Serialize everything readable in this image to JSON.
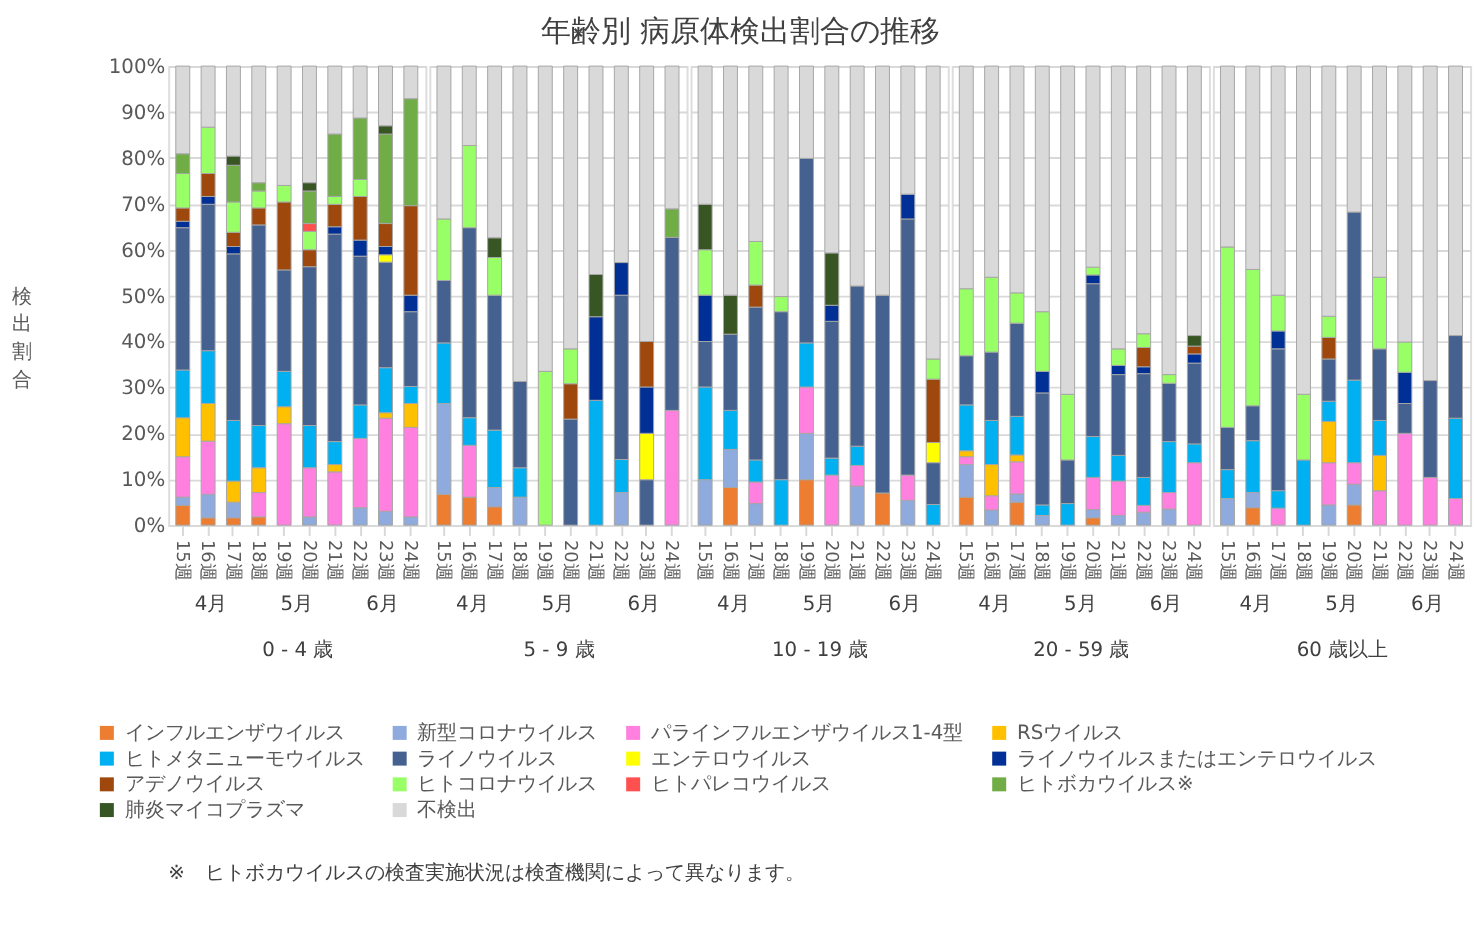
{
  "chart_data": [
    {
      "type": "bar",
      "stacked": true,
      "ylabel": "検出割合",
      "xlabel": "0 - 4 歳",
      "legend": "bottom",
      "grid": "y",
      "categories": [
        "15週",
        "16週",
        "17週",
        "18週",
        "19週",
        "20週",
        "21週",
        "22週",
        "23週",
        "24週"
      ],
      "ylim": [
        0,
        100
      ],
      "yticks": [
        {
          "value": 0,
          "label": "0%"
        },
        {
          "value": 10,
          "label": "10%"
        },
        {
          "value": 20,
          "label": "20%"
        },
        {
          "value": 30,
          "label": "30%"
        },
        {
          "value": 40,
          "label": "40%"
        },
        {
          "value": 50,
          "label": "50%"
        },
        {
          "value": 60,
          "label": "60%"
        },
        {
          "value": 70,
          "label": "70%"
        },
        {
          "value": 80,
          "label": "80%"
        },
        {
          "value": 90,
          "label": "90%"
        },
        {
          "value": 100,
          "label": "100%"
        }
      ],
      "annotations": [
        "4月",
        "5月",
        "6月",
        "※　ヒトボカウイルスの検査実施状況は検査機関によって異なります。"
      ],
      "series": [
        {
          "name": "インフルエンザウイルス",
          "color": "#ed7d31",
          "values": [
            4.3,
            1.6,
            1.6,
            1.8,
            null,
            null,
            null,
            null,
            null,
            null
          ]
        },
        {
          "name": "新型コロナウイルス",
          "color": "#8faadc",
          "values": [
            1.8,
            5.1,
            3.4,
            null,
            null,
            1.8,
            null,
            3.8,
            3.0,
            1.8
          ]
        },
        {
          "name": "パラインフルエンザウイルス1-4型",
          "color": "#ff80df",
          "values": [
            8.8,
            11.6,
            null,
            5.3,
            22.1,
            10.7,
            11.6,
            15.1,
            20.3,
            19.5
          ]
        },
        {
          "name": "RSウイルス",
          "color": "#ffc000",
          "values": [
            8.5,
            8.2,
            4.6,
            5.4,
            3.7,
            null,
            1.6,
            null,
            1.2,
            5.2
          ]
        },
        {
          "name": "ヒトメタニューモウイルス",
          "color": "#00b0f0",
          "values": [
            10.4,
            11.5,
            13.2,
            9.2,
            7.7,
            9.2,
            5.0,
            7.3,
            9.8,
            3.7
          ]
        },
        {
          "name": "ライノウイルス",
          "color": "#44618f",
          "values": [
            31.0,
            31.9,
            36.3,
            43.7,
            22.1,
            34.6,
            45.2,
            32.4,
            23.0,
            16.3
          ]
        },
        {
          "name": "エンテロウイルス",
          "color": "#ffff00",
          "values": [
            null,
            null,
            null,
            null,
            null,
            null,
            null,
            null,
            1.6,
            null
          ]
        },
        {
          "name": "ライノウイルスまたはエンテロウイルス",
          "color": "#002f96",
          "values": [
            1.4,
            1.7,
            1.6,
            null,
            null,
            null,
            1.6,
            3.5,
            1.8,
            3.6
          ]
        },
        {
          "name": "アデノウイルス",
          "color": "#9e480e",
          "values": [
            2.9,
            5.0,
            3.1,
            3.7,
            14.8,
            3.7,
            4.9,
            9.5,
            5.0,
            19.5
          ]
        },
        {
          "name": "ヒトコロナウイルス",
          "color": "#99ff66",
          "values": [
            7.5,
            10.1,
            6.6,
            3.7,
            3.6,
            4.0,
            1.7,
            3.7,
            null,
            null
          ]
        },
        {
          "name": "ヒトパレコウイルス",
          "color": "#ff5050",
          "values": [
            null,
            null,
            null,
            null,
            null,
            1.7,
            null,
            null,
            null,
            null
          ]
        },
        {
          "name": "ヒトボカウイルス※",
          "color": "#70ad47",
          "values": [
            4.3,
            null,
            8.0,
            1.8,
            null,
            7.1,
            13.6,
            13.4,
            19.5,
            23.3
          ]
        },
        {
          "name": "肺炎マイコプラズマ",
          "color": "#375623",
          "values": [
            null,
            null,
            2.0,
            null,
            null,
            1.8,
            null,
            null,
            1.8,
            null
          ]
        },
        {
          "name": "不検出",
          "color": "#d9d9d9",
          "values": [
            19.1,
            13.3,
            19.6,
            25.4,
            26.0,
            25.4,
            14.8,
            11.3,
            13.0,
            7.1
          ]
        }
      ]
    },
    {
      "type": "bar",
      "stacked": true,
      "xlabel": "5 - 9 歳",
      "grid": "y",
      "tick_labels": "x",
      "categories": [
        "15週",
        "16週",
        "17週",
        "18週",
        "19週",
        "20週",
        "21週",
        "22週",
        "23週",
        "24週"
      ],
      "ylim": [
        0,
        100
      ],
      "yticks": [
        0,
        10,
        20,
        30,
        40,
        50,
        60,
        70,
        80,
        90,
        100
      ],
      "annotations": [
        "4月",
        "5月",
        "6月"
      ],
      "series": [
        {
          "name": "インフルエンザウイルス",
          "color": "#ed7d31",
          "values": [
            6.7,
            6.1,
            4.0,
            null,
            null,
            null,
            null,
            null,
            null,
            null
          ]
        },
        {
          "name": "新型コロナウイルス",
          "color": "#8faadc",
          "values": [
            19.8,
            null,
            4.2,
            6.1,
            null,
            null,
            null,
            7.1,
            null,
            null
          ]
        },
        {
          "name": "パラインフルエンザウイルス1-4型",
          "color": "#ff80df",
          "values": [
            null,
            11.3,
            null,
            null,
            null,
            null,
            null,
            null,
            null,
            25.0
          ]
        },
        {
          "name": "ヒトメタニューモウイルス",
          "color": "#00b0f0",
          "values": [
            13.2,
            6.0,
            12.5,
            6.4,
            null,
            null,
            27.2,
            7.2,
            null,
            null
          ]
        },
        {
          "name": "ライノウイルス",
          "color": "#44618f",
          "values": [
            13.6,
            41.4,
            29.4,
            18.8,
            null,
            23.1,
            null,
            35.8,
            9.9,
            37.7
          ]
        },
        {
          "name": "エンテロウイルス",
          "color": "#ffff00",
          "values": [
            null,
            null,
            null,
            null,
            null,
            null,
            null,
            null,
            10.1,
            null
          ]
        },
        {
          "name": "ライノウイルスまたはエンテロウイルス",
          "color": "#002f96",
          "values": [
            null,
            null,
            null,
            null,
            null,
            null,
            18.2,
            7.1,
            10.1,
            null
          ]
        },
        {
          "name": "アデノウイルス",
          "color": "#9e480e",
          "values": [
            null,
            null,
            null,
            null,
            null,
            7.7,
            null,
            null,
            9.9,
            null
          ]
        },
        {
          "name": "ヒトコロナウイルス",
          "color": "#99ff66",
          "values": [
            13.4,
            17.9,
            8.2,
            null,
            33.5,
            7.6,
            null,
            null,
            null,
            null
          ]
        },
        {
          "name": "ヒトボカウイルス※",
          "color": "#70ad47",
          "values": [
            null,
            null,
            null,
            null,
            null,
            null,
            null,
            null,
            null,
            6.2
          ]
        },
        {
          "name": "肺炎マイコプラズマ",
          "color": "#375623",
          "values": [
            null,
            null,
            4.3,
            null,
            null,
            null,
            9.2,
            null,
            null,
            null
          ]
        },
        {
          "name": "不検出",
          "color": "#d9d9d9",
          "values": [
            33.3,
            17.3,
            37.4,
            68.7,
            66.5,
            61.6,
            45.4,
            42.8,
            60.0,
            31.1
          ]
        }
      ]
    },
    {
      "type": "bar",
      "stacked": true,
      "title": "年齢別 病原体検出割合の推移",
      "xlabel": "10 - 19 歳",
      "grid": "y",
      "tick_labels": "x",
      "categories": [
        "15週",
        "16週",
        "17週",
        "18週",
        "19週",
        "20週",
        "21週",
        "22週",
        "23週",
        "24週"
      ],
      "ylim": [
        0,
        100
      ],
      "yticks": [
        0,
        10,
        20,
        30,
        40,
        50,
        60,
        70,
        80,
        90,
        100
      ],
      "annotations": [
        "4月",
        "5月",
        "6月"
      ],
      "series": [
        {
          "name": "インフルエンザウイルス",
          "color": "#ed7d31",
          "values": [
            null,
            8.2,
            null,
            null,
            9.9,
            null,
            null,
            7.0,
            null,
            null
          ]
        },
        {
          "name": "新型コロナウイルス",
          "color": "#8faadc",
          "values": [
            9.9,
            8.3,
            4.7,
            null,
            10.1,
            null,
            8.5,
            null,
            5.4,
            null
          ]
        },
        {
          "name": "パラインフルエンザウイルス1-4型",
          "color": "#ff80df",
          "values": [
            null,
            null,
            4.7,
            null,
            10.1,
            10.9,
            4.5,
            null,
            5.5,
            null
          ]
        },
        {
          "name": "ヒトメタニューモウイルス",
          "color": "#00b0f0",
          "values": [
            20.2,
            8.5,
            4.8,
            9.9,
            9.6,
            3.7,
            4.2,
            null,
            null,
            4.5
          ]
        },
        {
          "name": "ライノウイルス",
          "color": "#44618f",
          "values": [
            9.9,
            16.6,
            33.3,
            36.6,
            40.2,
            29.8,
            34.9,
            43.1,
            55.8,
            9.1
          ]
        },
        {
          "name": "エンテロウイルス",
          "color": "#ffff00",
          "values": [
            null,
            null,
            null,
            null,
            null,
            null,
            null,
            null,
            null,
            4.4
          ]
        },
        {
          "name": "ライノウイルスまたはエンテロウイルス",
          "color": "#002f96",
          "values": [
            10.1,
            null,
            null,
            null,
            null,
            3.5,
            null,
            null,
            5.4,
            null
          ]
        },
        {
          "name": "アデノウイルス",
          "color": "#9e480e",
          "values": [
            null,
            null,
            4.8,
            null,
            null,
            null,
            null,
            null,
            null,
            13.8
          ]
        },
        {
          "name": "ヒトコロナウイルス",
          "color": "#99ff66",
          "values": [
            9.9,
            null,
            9.5,
            3.3,
            null,
            null,
            null,
            null,
            null,
            4.4
          ]
        },
        {
          "name": "肺炎マイコプラズマ",
          "color": "#375623",
          "values": [
            9.9,
            8.5,
            null,
            null,
            null,
            11.4,
            null,
            null,
            null,
            null
          ]
        },
        {
          "name": "不検出",
          "color": "#d9d9d9",
          "values": [
            30.1,
            49.9,
            38.2,
            50.2,
            20.1,
            40.7,
            47.9,
            49.9,
            27.9,
            63.8
          ]
        }
      ]
    },
    {
      "type": "bar",
      "stacked": true,
      "xlabel": "20 - 59 歳",
      "grid": "y",
      "tick_labels": "x",
      "categories": [
        "15週",
        "16週",
        "17週",
        "18週",
        "19週",
        "20週",
        "21週",
        "22週",
        "23週",
        "24週"
      ],
      "ylim": [
        0,
        100
      ],
      "yticks": [
        0,
        10,
        20,
        30,
        40,
        50,
        60,
        70,
        80,
        90,
        100
      ],
      "annotations": [
        "4月",
        "5月",
        "6月"
      ],
      "series": [
        {
          "name": "インフルエンザウイルス",
          "color": "#ed7d31",
          "values": [
            6.1,
            null,
            5.0,
            null,
            null,
            1.6,
            null,
            null,
            null,
            null
          ]
        },
        {
          "name": "新型コロナウイルス",
          "color": "#8faadc",
          "values": [
            7.1,
            3.3,
            1.8,
            2.1,
            null,
            1.8,
            2.1,
            2.8,
            3.5,
            null
          ]
        },
        {
          "name": "パラインフルエンザウイルス1-4型",
          "color": "#ff80df",
          "values": [
            1.7,
            3.1,
            7.0,
            null,
            null,
            7.0,
            7.5,
            1.5,
            3.6,
            13.6
          ]
        },
        {
          "name": "RSウイルス",
          "color": "#ffc000",
          "values": [
            1.3,
            6.8,
            1.5,
            null,
            null,
            null,
            null,
            null,
            null,
            null
          ]
        },
        {
          "name": "ヒトメタニューモウイルス",
          "color": "#00b0f0",
          "values": [
            10.0,
            9.6,
            8.4,
            2.3,
            4.7,
            8.9,
            5.6,
            6.1,
            11.1,
            4.1
          ]
        },
        {
          "name": "ライノウイルス",
          "color": "#44618f",
          "values": [
            10.7,
            14.9,
            20.3,
            24.4,
            9.5,
            33.3,
            17.6,
            22.6,
            12.7,
            17.6
          ]
        },
        {
          "name": "ライノウイルスまたはエンテロウイルス",
          "color": "#002f96",
          "values": [
            null,
            null,
            null,
            4.7,
            null,
            1.9,
            2.0,
            1.5,
            null,
            2.0
          ]
        },
        {
          "name": "アデノウイルス",
          "color": "#9e480e",
          "values": [
            null,
            null,
            null,
            null,
            null,
            null,
            null,
            4.2,
            null,
            1.7
          ]
        },
        {
          "name": "ヒトコロナウイルス",
          "color": "#99ff66",
          "values": [
            14.6,
            16.3,
            6.6,
            13.0,
            14.3,
            1.7,
            3.6,
            3.0,
            1.9,
            null
          ]
        },
        {
          "name": "肺炎マイコプラズマ",
          "color": "#375623",
          "values": [
            null,
            null,
            null,
            null,
            null,
            null,
            null,
            null,
            null,
            2.3
          ]
        },
        {
          "name": "不検出",
          "color": "#d9d9d9",
          "values": [
            48.5,
            46.0,
            49.4,
            53.5,
            71.5,
            43.8,
            61.6,
            58.3,
            67.2,
            58.7
          ]
        }
      ]
    },
    {
      "type": "bar",
      "stacked": true,
      "xlabel": "60 歳以上",
      "grid": "y",
      "tick_labels": "x",
      "categories": [
        "15週",
        "16週",
        "17週",
        "18週",
        "19週",
        "20週",
        "21週",
        "22週",
        "23週",
        "24週"
      ],
      "ylim": [
        0,
        100
      ],
      "yticks": [
        0,
        10,
        20,
        30,
        40,
        50,
        60,
        70,
        80,
        90,
        100
      ],
      "annotations": [
        "4月",
        "5月",
        "6月"
      ],
      "series": [
        {
          "name": "インフルエンザウイルス",
          "color": "#ed7d31",
          "values": [
            null,
            3.8,
            null,
            null,
            null,
            4.4,
            null,
            null,
            null,
            null
          ]
        },
        {
          "name": "新型コロナウイルス",
          "color": "#8faadc",
          "values": [
            5.8,
            3.3,
            null,
            null,
            4.4,
            4.5,
            null,
            null,
            null,
            null
          ]
        },
        {
          "name": "パラインフルエンザウイルス1-4型",
          "color": "#ff80df",
          "values": [
            null,
            null,
            3.7,
            null,
            9.2,
            4.7,
            7.5,
            20.0,
            10.4,
            5.8
          ]
        },
        {
          "name": "RSウイルス",
          "color": "#ffc000",
          "values": [
            null,
            null,
            null,
            null,
            9.0,
            null,
            7.7,
            null,
            null,
            null
          ]
        },
        {
          "name": "ヒトメタニューモウイルス",
          "color": "#00b0f0",
          "values": [
            6.3,
            11.3,
            3.8,
            14.2,
            4.4,
            18.0,
            7.6,
            null,
            null,
            17.5
          ]
        },
        {
          "name": "ライノウイルス",
          "color": "#44618f",
          "values": [
            9.2,
            7.6,
            30.9,
            null,
            9.2,
            36.6,
            15.6,
            6.5,
            21.1,
            18.0
          ]
        },
        {
          "name": "ライノウイルスまたはエンテロウイルス",
          "color": "#002f96",
          "values": [
            null,
            null,
            3.9,
            null,
            null,
            null,
            null,
            6.8,
            null,
            null
          ]
        },
        {
          "name": "アデノウイルス",
          "color": "#9e480e",
          "values": [
            null,
            null,
            null,
            null,
            4.7,
            null,
            null,
            null,
            null,
            null
          ]
        },
        {
          "name": "ヒトコロナウイルス",
          "color": "#99ff66",
          "values": [
            39.3,
            29.7,
            7.8,
            14.3,
            4.6,
            null,
            15.6,
            6.6,
            null,
            null
          ]
        },
        {
          "name": "不検出",
          "color": "#d9d9d9",
          "values": [
            39.4,
            44.3,
            49.9,
            71.5,
            54.5,
            31.8,
            46.0,
            60.1,
            68.5,
            58.7
          ]
        }
      ]
    }
  ]
}
